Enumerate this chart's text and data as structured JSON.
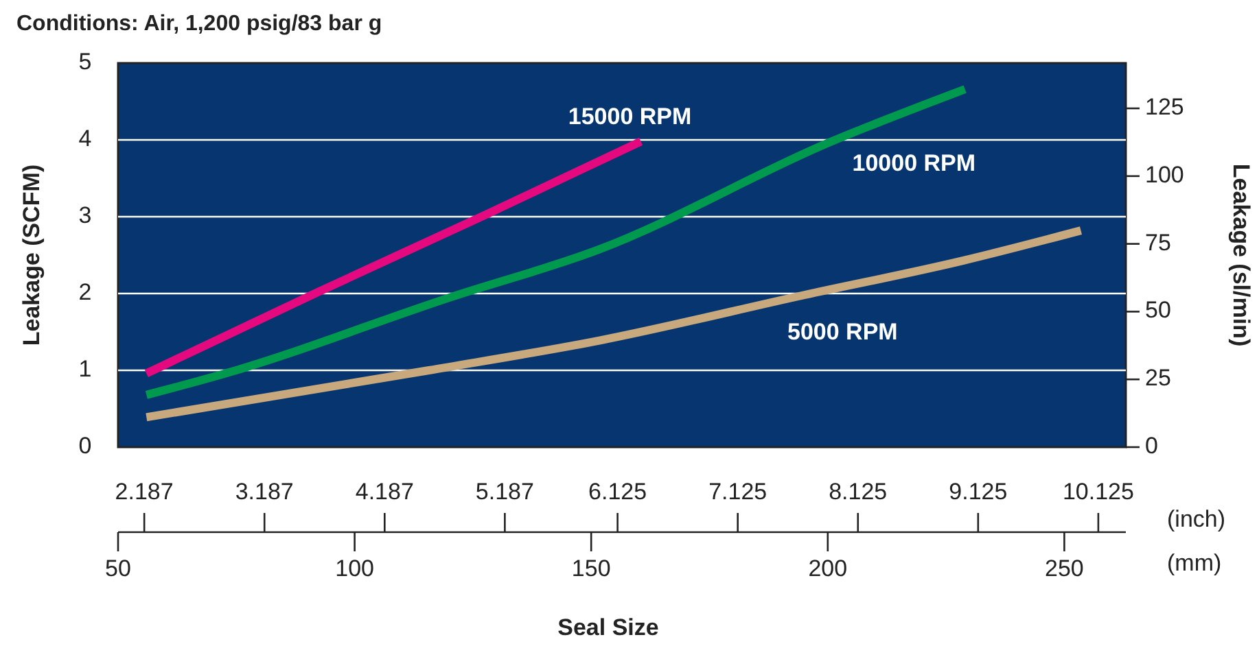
{
  "chart_data": {
    "type": "line",
    "title": "Conditions: Air, 1,200 psig/83 bar g",
    "xlabel": "Seal Size",
    "x2label": "(inch)",
    "ylabel": "Leakage (SCFM)",
    "y2label": "Leakage (sl/min)",
    "annotations": [
      "(mm)"
    ],
    "xlim": [
      50,
      263
    ],
    "xticks": [
      50,
      100,
      150,
      200,
      250
    ],
    "x2lim": [
      1.969,
      10.354
    ],
    "x2ticks": [
      2.187,
      3.187,
      4.187,
      5.187,
      6.125,
      7.125,
      8.125,
      9.125,
      10.125
    ],
    "ylim": [
      0,
      5
    ],
    "yticks": [
      0,
      1,
      2,
      3,
      4,
      5
    ],
    "y2lim": [
      0,
      141.7
    ],
    "y2ticks": [
      0,
      25,
      50,
      75,
      100,
      125
    ],
    "grid": "y",
    "line_style": "solid",
    "marker": "none",
    "series": [
      {
        "name": "15000 RPM",
        "color": "#e5097f",
        "x": [
          56,
          92.3,
          126.8,
          160.5
        ],
        "values": [
          0.96,
          2.02,
          3.0,
          3.98
        ]
      },
      {
        "name": "10000 RPM",
        "color": "#009a4e",
        "x": [
          56,
          72.2,
          120.2,
          151.5,
          200.8,
          229
        ],
        "values": [
          0.68,
          0.95,
          1.95,
          2.57,
          3.98,
          4.66
        ]
      },
      {
        "name": "5000 RPM",
        "color": "#c8a97e",
        "x": [
          56,
          115.7,
          151.9,
          195,
          228.7,
          253.5
        ],
        "values": [
          0.39,
          1.0,
          1.39,
          1.98,
          2.43,
          2.82
        ]
      }
    ]
  }
}
